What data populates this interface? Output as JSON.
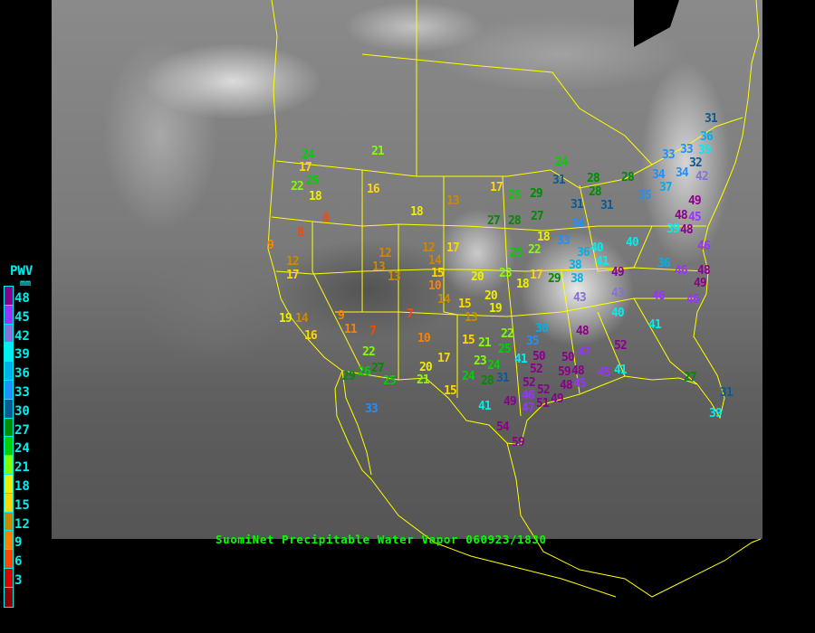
{
  "title": "SuomiNet Precipitable Water Vapor 060923/1830",
  "legend": {
    "title": "PWV",
    "unit": "mm",
    "labels": [
      "48",
      "45",
      "42",
      "39",
      "36",
      "33",
      "30",
      "27",
      "24",
      "21",
      "18",
      "15",
      "12",
      "9",
      "6",
      "3"
    ],
    "colors": [
      "#8b008b",
      "#9933ff",
      "#8870d8",
      "#00eeee",
      "#00b0e8",
      "#1e90ff",
      "#0a5a96",
      "#008c00",
      "#00d000",
      "#80ff00",
      "#eeee00",
      "#ffd700",
      "#cc8800",
      "#ff8000",
      "#ff4500",
      "#dd0000",
      "#8b0000"
    ]
  },
  "colors": {
    "borders": "#ffff00",
    "title": "#00ff00",
    "legend_text": "#00eeee"
  },
  "stations": [
    24,
    17,
    25,
    22,
    18,
    21,
    16,
    8,
    8,
    9,
    12,
    17,
    13,
    18,
    17,
    12,
    13,
    13,
    12,
    14,
    15,
    10,
    14,
    15,
    20,
    23,
    18,
    20,
    19,
    9,
    7,
    11,
    7,
    13,
    19,
    14,
    16,
    10,
    15,
    21,
    22,
    26,
    27,
    29,
    25,
    17,
    20,
    21,
    15,
    23,
    24,
    24,
    28,
    31,
    41,
    25,
    22,
    31,
    36,
    33,
    33,
    32,
    39,
    24,
    31,
    28,
    28,
    28,
    34,
    37,
    34,
    42,
    35,
    31,
    31,
    17,
    25,
    29,
    27,
    28,
    27,
    49,
    48,
    45,
    39,
    48,
    34,
    18,
    33,
    25,
    22,
    40,
    36,
    38,
    41,
    40,
    46,
    36,
    46,
    48,
    49,
    49,
    38,
    17,
    29,
    43,
    43,
    46,
    46,
    40,
    41,
    36,
    35,
    48,
    52,
    47,
    50,
    52,
    50,
    59,
    48,
    48,
    45,
    45,
    41,
    52,
    46,
    52,
    51,
    49,
    49,
    47,
    41,
    54,
    59,
    27,
    31,
    39,
    33
  ]
}
